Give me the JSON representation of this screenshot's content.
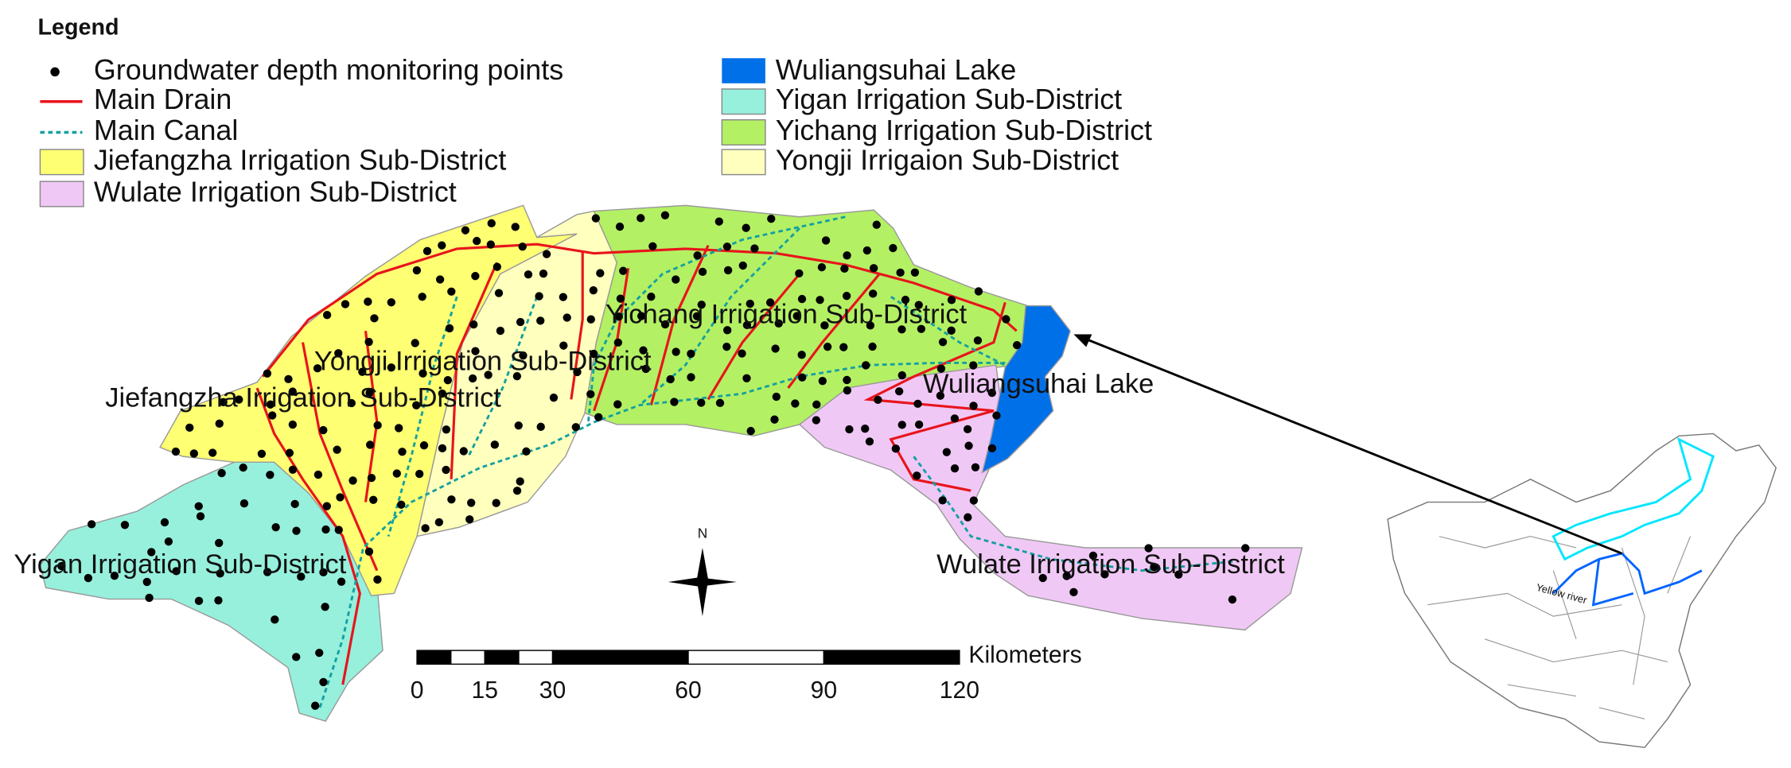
{
  "legend": {
    "title": "Legend",
    "items": [
      "Groundwater depth monitoring points",
      "Main Drain",
      "Main Canal",
      "Jiefangzha Irrigation Sub-District",
      "Wulate Irrigation Sub-District",
      "Wuliangsuhai Lake",
      "Yigan Irrigation Sub-District",
      "Yichang Irrigation Sub-District",
      "Yongji Irrigaion Sub-District"
    ]
  },
  "map_labels": [
    "Yichang Irrigation Sub-District",
    "Yongji Irrigation Sub-District",
    "Jiefangzha Irrigation Sub-District",
    "Wuliangsuhai Lake",
    "Yigan Irrigation Sub-District",
    "Wulate Irrigation Sub-District"
  ],
  "north": "N",
  "scale_bar": {
    "unit": "Kilometers",
    "ticks": [
      0,
      15,
      30,
      60,
      90,
      120
    ]
  },
  "inset": {
    "river_label": "Yellow river"
  }
}
